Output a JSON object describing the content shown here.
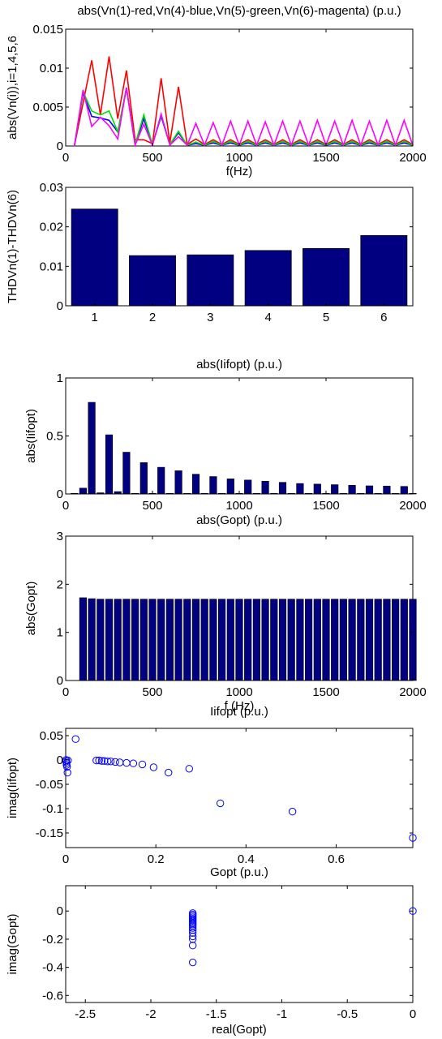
{
  "chart_data": [
    {
      "type": "line",
      "title": "abs(Vn(1)-red,Vn(4)-blue,Vn(5)-green,Vn(6)-magenta) (p.u.)",
      "xlabel": "f(Hz)",
      "ylabel": "abs(Vn(i)),i=1,4,5,6",
      "xlim": [
        0,
        2000
      ],
      "ylim": [
        0,
        0.015
      ],
      "xticks": [
        0,
        500,
        1000,
        1500,
        2000
      ],
      "xtick_labels": [
        "0",
        "500",
        "1000",
        "1500",
        "2000"
      ],
      "yticks": [
        0,
        0.005,
        0.01,
        0.015
      ],
      "ytick_labels": [
        "0",
        "0.005",
        "0.01",
        "0.015"
      ],
      "x": [
        50,
        100,
        150,
        200,
        250,
        300,
        350,
        400,
        450,
        500,
        550,
        600,
        650,
        700,
        750,
        800,
        850,
        900,
        950,
        1000,
        1050,
        1100,
        1150,
        1200,
        1250,
        1300,
        1350,
        1400,
        1450,
        1500,
        1550,
        1600,
        1650,
        1700,
        1750,
        1800,
        1850,
        1900,
        1950,
        2000
      ],
      "series": [
        {
          "name": "Vn(1)",
          "color": "#ff0000",
          "values": [
            0,
            0.0055,
            0.011,
            0.004,
            0.0115,
            0.0035,
            0.0097,
            0.0008,
            0.0008,
            0.0003,
            0.0087,
            0.0004,
            0.0076,
            0.0002,
            0.0009,
            0.0002,
            0.0008,
            0.0002,
            0.0008,
            0.0002,
            0.0008,
            0.0002,
            0.0008,
            0.0002,
            0.0008,
            0.0002,
            0.0008,
            0.0002,
            0.0008,
            0.0002,
            0.0008,
            0.0002,
            0.0008,
            0.0002,
            0.0008,
            0.0002,
            0.0008,
            0.0002,
            0.0008,
            0.0002
          ]
        },
        {
          "name": "Vn(4)",
          "color": "#0000ff",
          "values": [
            0,
            0.0068,
            0.0038,
            0.0036,
            0.0033,
            0.0018,
            0.0074,
            0.0002,
            0.0035,
            0.0002,
            0.0038,
            0.0002,
            0.0017,
            0.0001,
            0.0003,
            0.0001,
            0.0004,
            0.0001,
            0.0004,
            0.0001,
            0.0004,
            0.0001,
            0.0004,
            0.0001,
            0.0004,
            0.0001,
            0.0004,
            0.0001,
            0.0004,
            0.0001,
            0.0004,
            0.0001,
            0.0004,
            0.0001,
            0.0004,
            0.0001,
            0.0004,
            0.0001,
            0.0004,
            0.0001
          ]
        },
        {
          "name": "Vn(5)",
          "color": "#00dd00",
          "values": [
            0,
            0.007,
            0.0045,
            0.004,
            0.0045,
            0.0018,
            0.0075,
            0.0002,
            0.004,
            0.0002,
            0.004,
            0.0002,
            0.0019,
            0.0001,
            0.0005,
            0.0001,
            0.0006,
            0.0001,
            0.0006,
            0.0001,
            0.0006,
            0.0001,
            0.0006,
            0.0001,
            0.0006,
            0.0001,
            0.0006,
            0.0001,
            0.0006,
            0.0001,
            0.0006,
            0.0001,
            0.0006,
            0.0001,
            0.0006,
            0.0001,
            0.0006,
            0.0001,
            0.0006,
            0.0001
          ]
        },
        {
          "name": "Vn(6)",
          "color": "#ff00ff",
          "values": [
            0,
            0.0072,
            0.0025,
            0.0037,
            0.0026,
            0.0009,
            0.0075,
            0.0001,
            0.0028,
            0.0001,
            0.0041,
            0.0001,
            0.0012,
            0.0001,
            0.0029,
            0.0001,
            0.003,
            0.0001,
            0.0032,
            0.0001,
            0.0032,
            0.0001,
            0.0031,
            0.0001,
            0.0032,
            0.0001,
            0.0032,
            0.0001,
            0.0033,
            0.0001,
            0.0032,
            0.0001,
            0.0033,
            0.0001,
            0.0032,
            0.0001,
            0.0033,
            0.0001,
            0.0033,
            0.0001
          ]
        }
      ]
    },
    {
      "type": "bar",
      "title": "",
      "xlabel": "",
      "ylabel": "THDVn(1)-THDVn(6)",
      "ylim": [
        0,
        0.03
      ],
      "bar_color": "#000080",
      "yticks": [
        0,
        0.01,
        0.02,
        0.03
      ],
      "ytick_labels": [
        "0",
        "0.01",
        "0.02",
        "0.03"
      ],
      "categories": [
        "1",
        "2",
        "3",
        "4",
        "5",
        "6"
      ],
      "values": [
        0.0245,
        0.0127,
        0.0129,
        0.014,
        0.0145,
        0.0178
      ]
    },
    {
      "type": "bar",
      "title": "abs(Iifopt) (p.u.)",
      "xlabel": "",
      "ylabel": "abs(Iifopt)",
      "xlim": [
        0,
        2000
      ],
      "ylim": [
        0,
        1
      ],
      "bar_color": "#000080",
      "xticks": [
        0,
        500,
        1000,
        1500,
        2000
      ],
      "xtick_labels": [
        "0",
        "500",
        "1000",
        "1500",
        "2000"
      ],
      "yticks": [
        0,
        0.5,
        1
      ],
      "ytick_labels": [
        "0",
        "0.5",
        "1"
      ],
      "x": [
        50,
        100,
        150,
        200,
        250,
        300,
        350,
        400,
        450,
        500,
        550,
        600,
        650,
        700,
        750,
        800,
        850,
        900,
        950,
        1000,
        1050,
        1100,
        1150,
        1200,
        1250,
        1300,
        1350,
        1400,
        1450,
        1500,
        1550,
        1600,
        1650,
        1700,
        1750,
        1800,
        1850,
        1900,
        1950,
        2000
      ],
      "values": [
        0.005,
        0.05,
        0.79,
        0.01,
        0.51,
        0.02,
        0.36,
        0.005,
        0.27,
        0.005,
        0.23,
        0.005,
        0.2,
        0.005,
        0.17,
        0.005,
        0.15,
        0.005,
        0.13,
        0.005,
        0.12,
        0.005,
        0.11,
        0.005,
        0.1,
        0.005,
        0.09,
        0.005,
        0.085,
        0.005,
        0.08,
        0.005,
        0.075,
        0.005,
        0.07,
        0.005,
        0.068,
        0.005,
        0.065,
        0.005
      ]
    },
    {
      "type": "bar",
      "title": "abs(Gopt) (p.u.)",
      "xlabel": "f (Hz)",
      "ylabel": "abs(Gopt)",
      "xlim": [
        0,
        2000
      ],
      "ylim": [
        0,
        3
      ],
      "bar_color": "#000080",
      "xticks": [
        0,
        500,
        1000,
        1500,
        2000
      ],
      "xtick_labels": [
        "0",
        "500",
        "1000",
        "1500",
        "2000"
      ],
      "yticks": [
        0,
        1,
        2,
        3
      ],
      "ytick_labels": [
        "0",
        "1",
        "2",
        "3"
      ],
      "x": [
        100,
        150,
        200,
        250,
        300,
        350,
        400,
        450,
        500,
        550,
        600,
        650,
        700,
        750,
        800,
        850,
        900,
        950,
        1000,
        1050,
        1100,
        1150,
        1200,
        1250,
        1300,
        1350,
        1400,
        1450,
        1500,
        1550,
        1600,
        1650,
        1700,
        1750,
        1800,
        1850,
        1900,
        1950,
        2000
      ],
      "values": [
        1.72,
        1.7,
        1.69,
        1.69,
        1.69,
        1.69,
        1.69,
        1.69,
        1.69,
        1.69,
        1.69,
        1.69,
        1.69,
        1.69,
        1.69,
        1.69,
        1.69,
        1.69,
        1.69,
        1.69,
        1.69,
        1.69,
        1.69,
        1.69,
        1.69,
        1.69,
        1.69,
        1.69,
        1.69,
        1.69,
        1.69,
        1.69,
        1.69,
        1.69,
        1.69,
        1.69,
        1.69,
        1.69,
        1.69
      ]
    },
    {
      "type": "scatter",
      "title": "Iifopt (p.u.)",
      "xlabel": "Gopt (p.u.)",
      "ylabel": "imag(Iifopt)",
      "xlim": [
        0,
        0.77
      ],
      "ylim": [
        -0.18,
        0.065
      ],
      "marker_color": "#0000ff",
      "xticks": [
        0,
        0.2,
        0.4,
        0.6
      ],
      "xtick_labels": [
        "0",
        "0.2",
        "0.4",
        "0.6"
      ],
      "yticks": [
        -0.15,
        -0.1,
        -0.05,
        0,
        0.05
      ],
      "ytick_labels": [
        "-0.15",
        "-0.1",
        "-0.05",
        "0",
        "0.05"
      ],
      "x": [
        0.001,
        0.001,
        0.002,
        0.002,
        0.003,
        0.004,
        0.005,
        0.022,
        0.068,
        0.074,
        0.08,
        0.086,
        0.093,
        0.1,
        0.11,
        0.12,
        0.135,
        0.15,
        0.17,
        0.195,
        0.228,
        0.274,
        0.343,
        0.503,
        0.77
      ],
      "y": [
        0.0,
        -0.003,
        -0.006,
        -0.01,
        -0.014,
        -0.026,
        -0.001,
        0.043,
        -0.001,
        -0.001,
        -0.002,
        -0.002,
        -0.003,
        -0.003,
        -0.004,
        -0.005,
        -0.006,
        -0.007,
        -0.009,
        -0.015,
        -0.026,
        -0.018,
        -0.089,
        -0.106,
        -0.16
      ]
    },
    {
      "type": "scatter",
      "title": "",
      "xlabel": "real(Gopt)",
      "ylabel": "imag(Gopt)",
      "xlim": [
        -2.65,
        0
      ],
      "ylim": [
        -0.65,
        0.18
      ],
      "marker_color": "#0000ff",
      "xticks": [
        -2.5,
        -2,
        -1.5,
        -1,
        -0.5,
        0
      ],
      "xtick_labels": [
        "-2.5",
        "-2",
        "-1.5",
        "-1",
        "-0.5",
        "0"
      ],
      "yticks": [
        -0.6,
        -0.4,
        -0.2,
        0
      ],
      "ytick_labels": [
        "-0.6",
        "-0.4",
        "-0.2",
        "0"
      ],
      "x": [
        0,
        -1.68,
        -1.68,
        -1.68,
        -1.68,
        -1.68,
        -1.68,
        -1.68,
        -1.68,
        -1.68,
        -1.68,
        -1.68,
        -1.68,
        -1.68,
        -1.68,
        -1.68,
        -1.68,
        -1.68
      ],
      "y": [
        0,
        -0.015,
        -0.025,
        -0.035,
        -0.045,
        -0.055,
        -0.065,
        -0.075,
        -0.085,
        -0.095,
        -0.105,
        -0.12,
        -0.135,
        -0.155,
        -0.18,
        -0.2,
        -0.245,
        -0.365
      ]
    }
  ]
}
